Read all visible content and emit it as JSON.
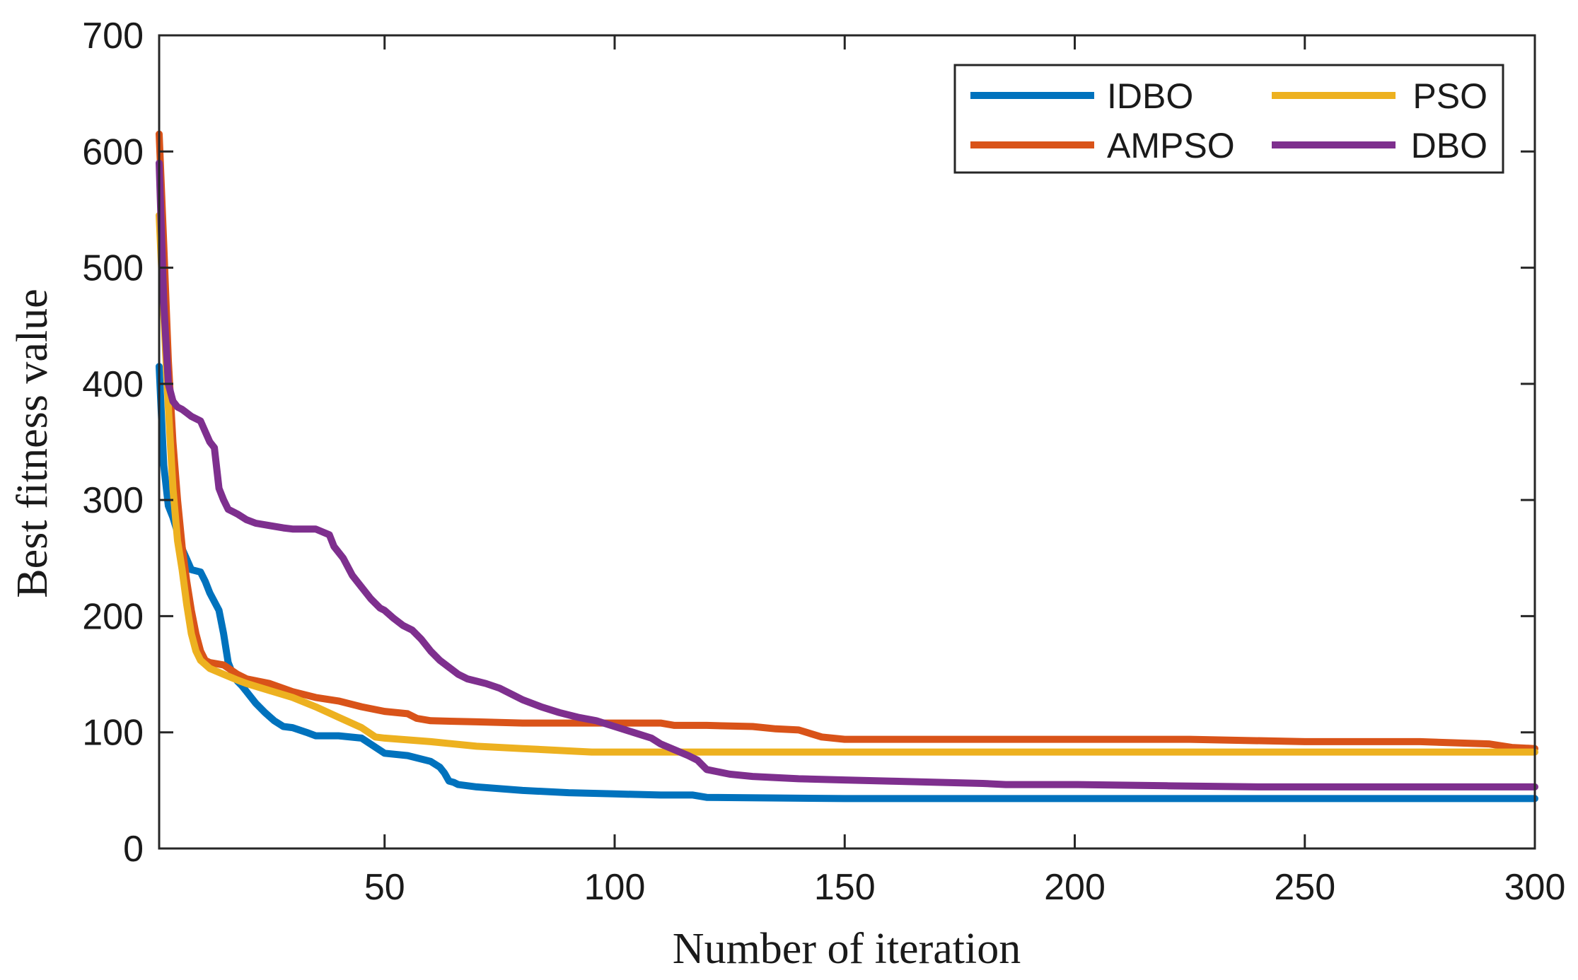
{
  "chart_data": {
    "type": "line",
    "title": "",
    "xlabel": "Number of iteration",
    "ylabel": "Best fitness value",
    "xlim": [
      1,
      300
    ],
    "ylim": [
      0,
      700
    ],
    "xticks": [
      50,
      100,
      150,
      200,
      250,
      300
    ],
    "yticks": [
      0,
      100,
      200,
      300,
      400,
      500,
      600,
      700
    ],
    "grid": false,
    "legend_position": "top-right",
    "legend_columns": 2,
    "series": [
      {
        "name": "IDBO",
        "color": "#0072BD",
        "x": [
          1,
          2,
          3,
          4,
          5,
          6,
          8,
          10,
          11,
          12,
          14,
          15,
          16,
          17,
          18,
          19,
          20,
          22,
          24,
          26,
          28,
          30,
          33,
          35,
          40,
          45,
          50,
          55,
          60,
          62,
          63,
          64,
          65,
          66,
          70,
          80,
          90,
          100,
          110,
          117,
          120,
          150,
          200,
          250,
          300
        ],
        "y": [
          415,
          330,
          295,
          285,
          272,
          258,
          240,
          238,
          230,
          220,
          205,
          185,
          160,
          150,
          144,
          140,
          135,
          125,
          117,
          110,
          105,
          104,
          100,
          97,
          97,
          95,
          82,
          80,
          75,
          70,
          65,
          58,
          57,
          55,
          53,
          50,
          48,
          47,
          46,
          46,
          44,
          43,
          43,
          43,
          43
        ]
      },
      {
        "name": "AMPSO",
        "color": "#D95319",
        "x": [
          1,
          2,
          3,
          4,
          5,
          6,
          7,
          8,
          9,
          10,
          11,
          12,
          15,
          18,
          20,
          25,
          30,
          35,
          40,
          45,
          50,
          55,
          57,
          60,
          70,
          80,
          100,
          110,
          113,
          120,
          130,
          135,
          140,
          145,
          150,
          200,
          225,
          250,
          275,
          290,
          295,
          300
        ],
        "y": [
          615,
          520,
          420,
          350,
          300,
          260,
          230,
          205,
          185,
          170,
          162,
          160,
          158,
          150,
          146,
          142,
          135,
          130,
          127,
          122,
          118,
          116,
          112,
          110,
          109,
          108,
          108,
          108,
          106,
          106,
          105,
          103,
          102,
          96,
          94,
          94,
          94,
          92,
          92,
          90,
          87,
          86
        ]
      },
      {
        "name": "PSO",
        "color": "#EDB120",
        "x": [
          1,
          2,
          3,
          4,
          5,
          6,
          7,
          8,
          9,
          10,
          12,
          15,
          18,
          20,
          25,
          30,
          35,
          40,
          45,
          48,
          50,
          60,
          70,
          80,
          90,
          95,
          100,
          150,
          200,
          250,
          300
        ],
        "y": [
          545,
          460,
          380,
          310,
          265,
          240,
          210,
          185,
          170,
          162,
          155,
          150,
          145,
          142,
          136,
          130,
          122,
          113,
          104,
          96,
          95,
          92,
          88,
          86,
          84,
          83,
          83,
          83,
          83,
          83,
          83
        ]
      },
      {
        "name": "DBO",
        "color": "#7E2F8E",
        "x": [
          1,
          2,
          3,
          4,
          5,
          6,
          7,
          8,
          10,
          12,
          13,
          14,
          15,
          16,
          17,
          18,
          20,
          22,
          25,
          28,
          30,
          35,
          38,
          39,
          41,
          43,
          45,
          47,
          49,
          50,
          52,
          54,
          56,
          58,
          60,
          62,
          64,
          66,
          68,
          70,
          72,
          75,
          78,
          80,
          84,
          88,
          92,
          96,
          100,
          104,
          108,
          110,
          113,
          116,
          118,
          119,
          120,
          125,
          130,
          140,
          150,
          160,
          170,
          180,
          185,
          200,
          220,
          240,
          260,
          280,
          300
        ],
        "y": [
          590,
          470,
          400,
          385,
          380,
          378,
          375,
          372,
          368,
          350,
          345,
          310,
          300,
          292,
          290,
          288,
          283,
          280,
          278,
          276,
          275,
          275,
          270,
          260,
          250,
          235,
          225,
          215,
          207,
          205,
          198,
          192,
          188,
          180,
          170,
          162,
          156,
          150,
          146,
          144,
          142,
          138,
          132,
          128,
          122,
          117,
          113,
          110,
          105,
          100,
          95,
          90,
          85,
          80,
          76,
          72,
          68,
          64,
          62,
          60,
          59,
          58,
          57,
          56,
          55,
          55,
          54,
          53,
          53,
          53,
          53
        ]
      }
    ]
  }
}
